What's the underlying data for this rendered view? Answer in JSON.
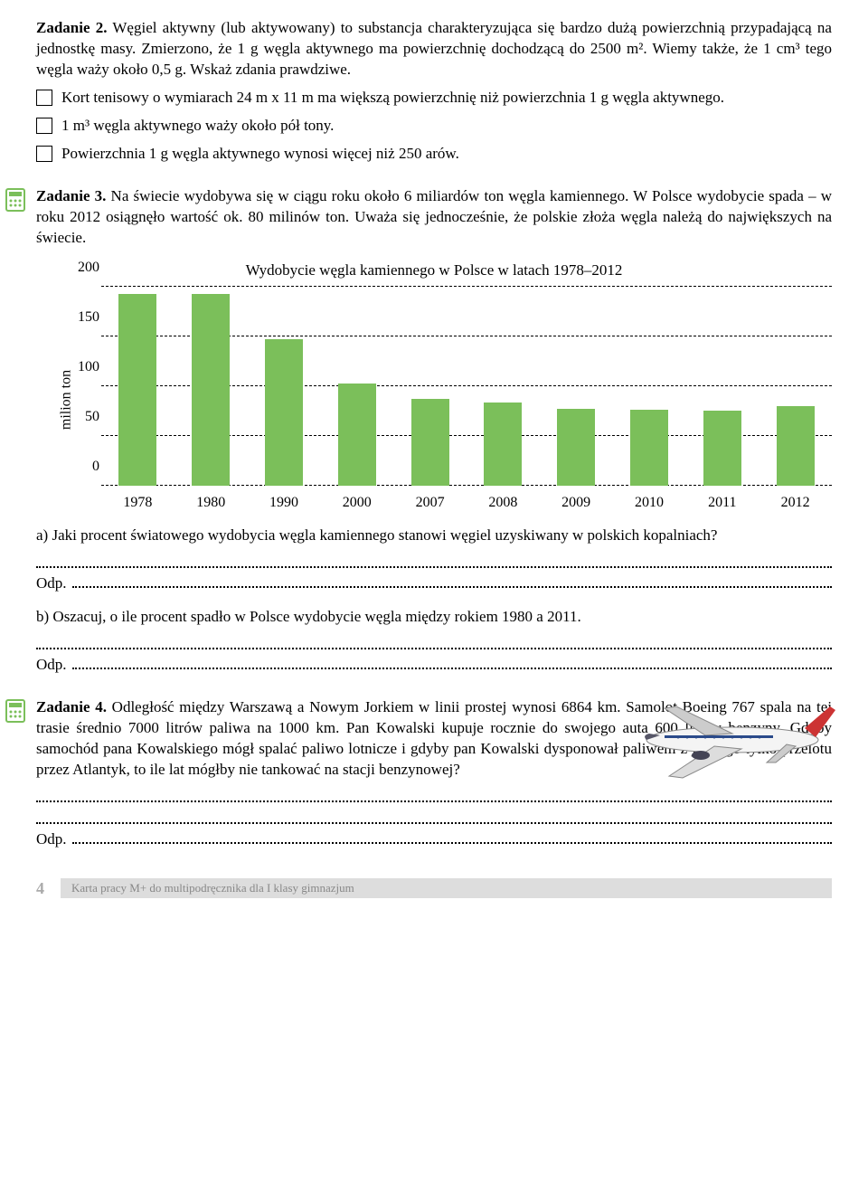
{
  "task2": {
    "heading": "Zadanie 2.",
    "body": "Węgiel aktywny (lub aktywowany) to substancja charakteryzująca się bardzo dużą powierzchnią przypadającą na jednostkę masy. Zmierzono, że 1 g węgla aktywnego ma powierzchnię dochodzącą do 2500 m². Wiemy także, że 1 cm³ tego węgla waży około 0,5 g. Wskaż zdania prawdziwe.",
    "opts": [
      "Kort tenisowy o wymiarach 24 m x 11 m ma większą powierzchnię niż powierzchnia 1 g węgla aktywnego.",
      "1 m³ węgla aktywnego waży około pół tony.",
      "Powierzchnia 1 g węgla aktywnego wynosi więcej niż 250 arów."
    ]
  },
  "task3": {
    "heading": "Zadanie 3.",
    "body": "Na świecie wydobywa się w ciągu roku około 6 miliardów ton węgla kamiennego. W Polsce wydobycie spada – w roku 2012 osiągnęło wartość ok. 80 milinów ton. Uważa się jednocześnie, że polskie złoża węgla należą do największych na świecie."
  },
  "chart": {
    "title": "Wydobycie węgla kamiennego w Polsce w latach 1978–2012",
    "ylabel": "milion ton",
    "ymax": 200,
    "yticks": [
      0,
      50,
      100,
      150,
      200
    ],
    "categories": [
      "1978",
      "1980",
      "1990",
      "2000",
      "2007",
      "2008",
      "2009",
      "2010",
      "2011",
      "2012"
    ],
    "values": [
      193,
      193,
      148,
      103,
      88,
      84,
      78,
      77,
      76,
      80
    ],
    "bar_color": "#7bbf5a",
    "grid_color": "#000000"
  },
  "q_a": "a) Jaki procent światowego wydobycia węgla kamiennego stanowi węgiel uzyskiwany w polskich kopalniach?",
  "q_b": "b) Oszacuj, o ile procent spadło w Polsce wydobycie węgla między rokiem 1980 a 2011.",
  "odp": "Odp.",
  "task4": {
    "heading": "Zadanie 4.",
    "body": "Odległość między Warszawą a Nowym Jorkiem w linii prostej wynosi 6864 km. Samolot Boeing 767 spala na tej trasie średnio 7000 litrów paliwa na 1000 km. Pan Kowalski kupuje rocznie do swojego auta 600 litrów benzyny. Gdyby samochód pana Kowalskiego mógł spalać paliwo lotnicze i gdyby pan Kowalski dysponował paliwem z jednego tylko przelotu przez Atlantyk, to ile lat mógłby nie tankować na stacji benzynowej?"
  },
  "footer": {
    "page": "4",
    "text": "Karta pracy M+ do multipodręcznika dla I klasy gimnazjum"
  },
  "calc_color": "#7bbf5a"
}
